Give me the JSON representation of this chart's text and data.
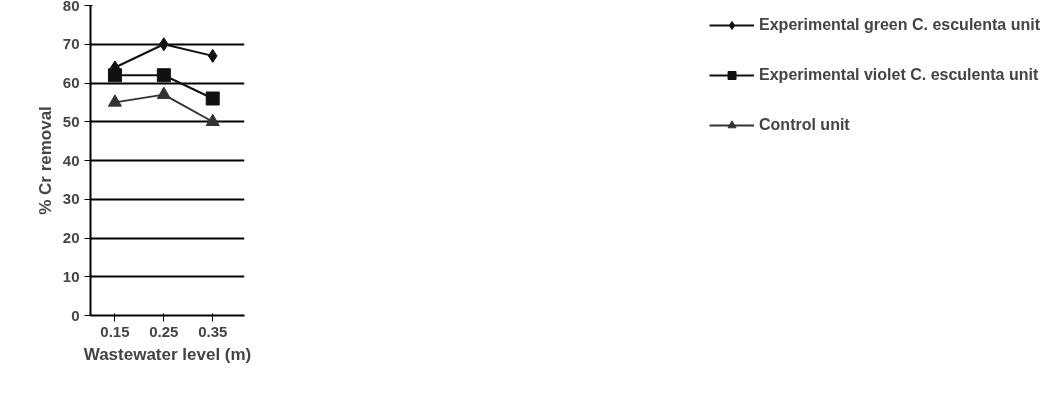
{
  "chart_data": {
    "type": "line",
    "xlabel": "Wastewater level (m)",
    "ylabel": "% Cr removal",
    "categories": [
      "0.15",
      "0.25",
      "0.35"
    ],
    "series": [
      {
        "name": "Experimental green C. esculenta unit",
        "color": "#111111",
        "marker": "diamond",
        "values": [
          64,
          70,
          67
        ]
      },
      {
        "name": "Experimental violet C. esculenta unit",
        "color": "#111111",
        "marker": "square",
        "values": [
          62,
          62,
          56
        ]
      },
      {
        "name": "Control unit",
        "color": "#333333",
        "marker": "triangle",
        "values": [
          55,
          57,
          50
        ]
      }
    ],
    "ylim": [
      0,
      80
    ],
    "yticks": [
      0,
      10,
      20,
      30,
      40,
      50,
      60,
      70,
      80
    ],
    "grid": "y",
    "legend": "right",
    "line_style": "solid"
  }
}
